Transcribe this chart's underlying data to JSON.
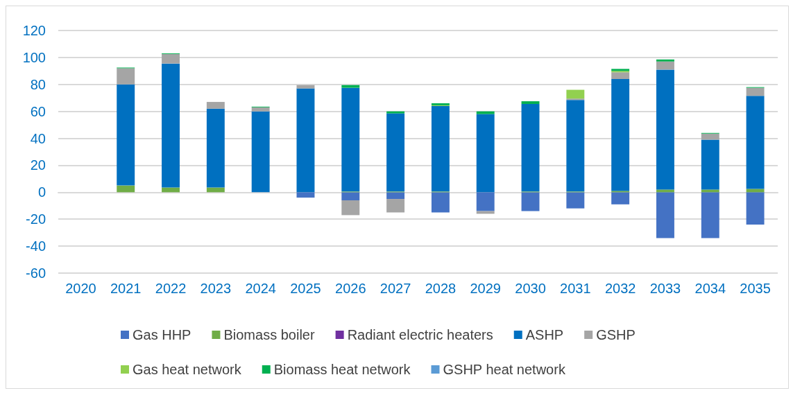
{
  "chart_data": {
    "type": "bar",
    "stacked": true,
    "categories": [
      "2020",
      "2021",
      "2022",
      "2023",
      "2024",
      "2025",
      "2026",
      "2027",
      "2028",
      "2029",
      "2030",
      "2031",
      "2032",
      "2033",
      "2034",
      "2035"
    ],
    "series": [
      {
        "name": "Gas HHP",
        "color": "#4472c4",
        "values": [
          null,
          null,
          null,
          null,
          null,
          -4,
          -6,
          -5,
          -15,
          -14,
          -14,
          -12,
          -9,
          -34,
          -34,
          -24
        ]
      },
      {
        "name": "Biomass boiler",
        "color": "#70ad47",
        "values": [
          null,
          5,
          3.5,
          3.5,
          null,
          null,
          0.5,
          0.5,
          0.5,
          null,
          0.5,
          0.5,
          1,
          2,
          2,
          2.5
        ]
      },
      {
        "name": "Radiant electric heaters",
        "color": "#7030a0",
        "values": [
          null,
          null,
          null,
          null,
          null,
          null,
          null,
          null,
          null,
          null,
          null,
          null,
          null,
          null,
          null,
          null
        ]
      },
      {
        "name": "ASHP",
        "color": "#0070c0",
        "values": [
          null,
          75,
          92,
          58.5,
          60,
          77,
          77,
          58,
          63.5,
          58,
          65,
          68,
          83,
          89,
          37,
          69
        ]
      },
      {
        "name": "GSHP",
        "color": "#a5a5a5",
        "values": [
          null,
          12,
          7,
          5,
          3,
          2.5,
          -11,
          -10,
          null,
          -2,
          null,
          1,
          5,
          6,
          4.5,
          6
        ]
      },
      {
        "name": "Gas heat network",
        "color": "#92d050",
        "values": [
          null,
          null,
          null,
          null,
          null,
          null,
          null,
          null,
          0.5,
          null,
          null,
          6.5,
          1,
          null,
          null,
          null
        ]
      },
      {
        "name": "Biomass heat network",
        "color": "#00b050",
        "values": [
          null,
          0.5,
          0.5,
          null,
          0.5,
          null,
          2,
          1.5,
          1.5,
          2,
          2,
          null,
          1.5,
          1.5,
          0.5,
          0.5
        ]
      },
      {
        "name": "GSHP heat network",
        "color": "#5b9bd5",
        "values": [
          null,
          null,
          null,
          null,
          null,
          null,
          null,
          null,
          null,
          null,
          null,
          null,
          null,
          null,
          null,
          null
        ]
      }
    ],
    "ylim": [
      -60,
      120
    ],
    "yticks": [
      -60,
      -40,
      -20,
      0,
      20,
      40,
      60,
      80,
      100,
      120
    ],
    "grid": "y",
    "legend": "bottom"
  }
}
